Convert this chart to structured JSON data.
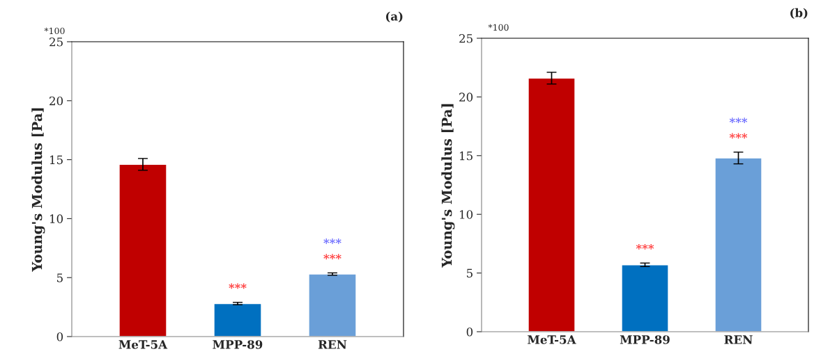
{
  "chart_data": [
    {
      "type": "bar",
      "title": "(a)",
      "ylabel": "Young's Modulus [Pa]",
      "categories": [
        "MeT-5A",
        "MPP-89",
        "REN"
      ],
      "values": [
        14.6,
        2.8,
        5.3
      ],
      "errors": [
        0.5,
        0.1,
        0.1
      ],
      "colors": [
        "#c00000",
        "#0070c0",
        "#6a9fd8"
      ],
      "ylim": [
        0,
        25
      ],
      "yticks": [
        0,
        5,
        10,
        15,
        20,
        25
      ],
      "grid": false,
      "annotations": [
        "*100",
        {
          "text": "***",
          "x": "MPP-89",
          "y": 2.9
        },
        {
          "text": "***",
          "x": "REN",
          "y": 5.4
        },
        {
          "text": "***",
          "x": "REN",
          "y": 5.4
        }
      ]
    },
    {
      "type": "bar",
      "title": "(b)",
      "ylabel": "Young's Modulus [Pa]",
      "categories": [
        "MeT-5A",
        "MPP-89",
        "REN"
      ],
      "values": [
        21.6,
        5.7,
        14.8
      ],
      "errors": [
        0.5,
        0.15,
        0.5
      ],
      "colors": [
        "#c00000",
        "#0070c0",
        "#6a9fd8"
      ],
      "ylim": [
        0,
        25
      ],
      "yticks": [
        0,
        5,
        10,
        15,
        20,
        25
      ],
      "grid": false,
      "annotations": [
        "*100",
        {
          "text": "***",
          "x": "MPP-89",
          "y": 5.85
        },
        {
          "text": "***",
          "x": "REN",
          "y": 15.3
        },
        {
          "text": "***",
          "x": "REN",
          "y": 15.3
        }
      ]
    }
  ]
}
